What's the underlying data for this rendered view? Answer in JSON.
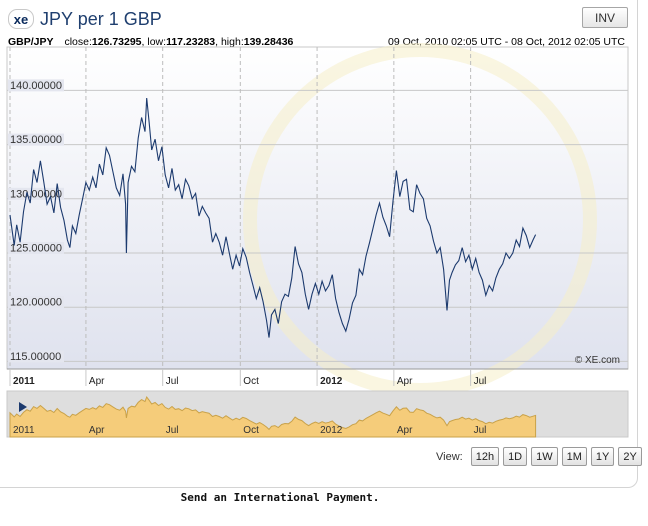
{
  "header": {
    "logo_text": "xe",
    "title": "JPY per 1 GBP",
    "inv_label": "INV"
  },
  "stats": {
    "pair": "GBP/JPY",
    "close_label": "close:",
    "close_value": "126.73295",
    "low_label": "low:",
    "low_value": "117.23283",
    "high_label": "high:",
    "high_value": "139.28436",
    "date_range": "09 Oct, 2010 02:05 UTC - 08 Oct, 2012 02:05 UTC"
  },
  "copyright": "© XE.com",
  "view": {
    "label": "View:",
    "buttons": [
      "12h",
      "1D",
      "1W",
      "1M",
      "1Y",
      "2Y"
    ]
  },
  "footer": "Send an International Payment.",
  "colors": {
    "line": "#1c3a6e",
    "plot_bg_top": "#ffffff",
    "plot_bg_bottom": "#dfe2ee",
    "navigator_fill": "#f5cc7a",
    "navigator_line": "#c9a24a",
    "navigator_bg": "#dedede",
    "navigator_handle": "#1c3a6e"
  },
  "chart_data": {
    "type": "line",
    "series": [
      {
        "values": [
          [
            0,
            128.5
          ],
          [
            5,
            125.7
          ],
          [
            8,
            127.6
          ],
          [
            12,
            126.0
          ],
          [
            16,
            128.8
          ],
          [
            20,
            130.6
          ],
          [
            24,
            129.6
          ],
          [
            28,
            132.7
          ],
          [
            32,
            131.5
          ],
          [
            36,
            133.5
          ],
          [
            40,
            131.6
          ],
          [
            44,
            129.5
          ],
          [
            48,
            130.2
          ],
          [
            52,
            128.7
          ],
          [
            56,
            131.4
          ],
          [
            60,
            129.2
          ],
          [
            64,
            128.0
          ],
          [
            68,
            126.2
          ],
          [
            71,
            125.5
          ],
          [
            74,
            127.5
          ],
          [
            78,
            126.8
          ],
          [
            82,
            128.5
          ],
          [
            86,
            130.0
          ],
          [
            90,
            131.5
          ],
          [
            94,
            130.8
          ],
          [
            98,
            132.0
          ],
          [
            102,
            131.0
          ],
          [
            106,
            133.2
          ],
          [
            110,
            132.2
          ],
          [
            114,
            134.7
          ],
          [
            118,
            134.0
          ],
          [
            122,
            132.5
          ],
          [
            126,
            131.0
          ],
          [
            130,
            130.3
          ],
          [
            134,
            132.3
          ],
          [
            137,
            129.5
          ],
          [
            138,
            125.0
          ],
          [
            140,
            131.5
          ],
          [
            144,
            133.0
          ],
          [
            148,
            132.5
          ],
          [
            152,
            135.6
          ],
          [
            156,
            137.5
          ],
          [
            160,
            136.2
          ],
          [
            162,
            139.3
          ],
          [
            165,
            137.0
          ],
          [
            168,
            134.5
          ],
          [
            172,
            135.5
          ],
          [
            176,
            133.5
          ],
          [
            180,
            134.8
          ],
          [
            184,
            132.2
          ],
          [
            188,
            131.0
          ],
          [
            192,
            132.8
          ],
          [
            196,
            130.8
          ],
          [
            200,
            131.3
          ],
          [
            204,
            130.0
          ],
          [
            208,
            131.8
          ],
          [
            212,
            131.2
          ],
          [
            216,
            130.0
          ],
          [
            220,
            130.5
          ],
          [
            224,
            128.4
          ],
          [
            228,
            129.3
          ],
          [
            232,
            128.7
          ],
          [
            236,
            128.2
          ],
          [
            240,
            126.0
          ],
          [
            244,
            126.8
          ],
          [
            248,
            126.0
          ],
          [
            252,
            124.8
          ],
          [
            256,
            126.5
          ],
          [
            260,
            125.0
          ],
          [
            264,
            123.5
          ],
          [
            268,
            124.8
          ],
          [
            272,
            123.8
          ],
          [
            276,
            125.4
          ],
          [
            280,
            124.6
          ],
          [
            284,
            123.2
          ],
          [
            288,
            122.0
          ],
          [
            292,
            120.8
          ],
          [
            296,
            121.8
          ],
          [
            300,
            120.5
          ],
          [
            304,
            118.8
          ],
          [
            307,
            117.2
          ],
          [
            310,
            119.3
          ],
          [
            314,
            119.8
          ],
          [
            318,
            118.5
          ],
          [
            322,
            120.5
          ],
          [
            326,
            121.2
          ],
          [
            330,
            121.0
          ],
          [
            334,
            122.7
          ],
          [
            338,
            125.6
          ],
          [
            342,
            124.0
          ],
          [
            346,
            123.2
          ],
          [
            350,
            121.2
          ],
          [
            354,
            119.8
          ],
          [
            358,
            121.2
          ],
          [
            362,
            122.2
          ],
          [
            366,
            121.2
          ],
          [
            370,
            122.4
          ],
          [
            374,
            121.5
          ],
          [
            378,
            122.0
          ],
          [
            382,
            123.0
          ],
          [
            386,
            120.8
          ],
          [
            390,
            119.5
          ],
          [
            394,
            118.5
          ],
          [
            398,
            117.8
          ],
          [
            402,
            118.9
          ],
          [
            406,
            120.4
          ],
          [
            410,
            121.1
          ],
          [
            414,
            123.5
          ],
          [
            418,
            123.0
          ],
          [
            422,
            124.7
          ],
          [
            426,
            125.9
          ],
          [
            430,
            127.2
          ],
          [
            434,
            128.5
          ],
          [
            438,
            129.6
          ],
          [
            442,
            128.3
          ],
          [
            446,
            127.5
          ],
          [
            450,
            126.5
          ],
          [
            454,
            129.8
          ],
          [
            458,
            132.6
          ],
          [
            462,
            130.2
          ],
          [
            466,
            131.6
          ],
          [
            470,
            131.8
          ],
          [
            474,
            129.0
          ],
          [
            478,
            128.8
          ],
          [
            482,
            131.3
          ],
          [
            486,
            130.5
          ],
          [
            490,
            130.0
          ],
          [
            494,
            128.2
          ],
          [
            498,
            127.5
          ],
          [
            502,
            126.1
          ],
          [
            506,
            125.0
          ],
          [
            510,
            125.5
          ],
          [
            514,
            123.5
          ],
          [
            518,
            119.7
          ],
          [
            521,
            122.5
          ],
          [
            524,
            123.2
          ],
          [
            528,
            123.9
          ],
          [
            532,
            124.3
          ],
          [
            536,
            125.5
          ],
          [
            540,
            124.2
          ],
          [
            544,
            124.8
          ],
          [
            548,
            123.5
          ],
          [
            552,
            124.5
          ],
          [
            556,
            123.2
          ],
          [
            560,
            122.5
          ],
          [
            564,
            121.1
          ],
          [
            568,
            122.0
          ],
          [
            572,
            121.5
          ],
          [
            576,
            122.7
          ],
          [
            580,
            123.5
          ],
          [
            584,
            124.0
          ],
          [
            588,
            125.0
          ],
          [
            592,
            124.5
          ],
          [
            596,
            125.0
          ],
          [
            600,
            126.2
          ],
          [
            604,
            125.6
          ],
          [
            608,
            127.3
          ],
          [
            612,
            126.6
          ],
          [
            616,
            125.5
          ],
          [
            620,
            126.2
          ],
          [
            623,
            126.7
          ]
        ]
      }
    ],
    "x_tick_labels": [
      "2011",
      "Apr",
      "Jul",
      "Oct",
      "2012",
      "Apr",
      "Jul"
    ],
    "x_tick_bold": [
      true,
      false,
      false,
      false,
      true,
      false,
      false
    ],
    "x_ticks_at": [
      0,
      90,
      181,
      273,
      364,
      455,
      546
    ],
    "y_ticks": [
      115,
      120,
      125,
      130,
      135,
      140
    ],
    "y_tick_labels": [
      "115.00000",
      "120.00000",
      "125.00000",
      "130.00000",
      "135.00000",
      "140.00000"
    ],
    "ylim": [
      114.3,
      144.0
    ],
    "grid": true
  }
}
